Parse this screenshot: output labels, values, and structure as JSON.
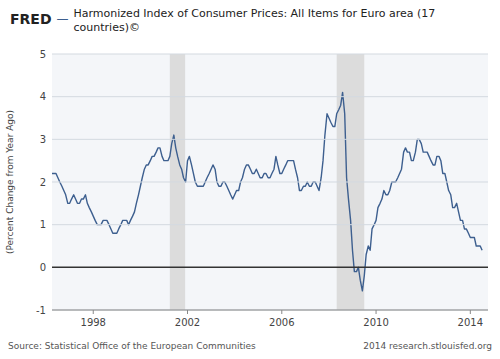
{
  "chart_data": {
    "type": "line",
    "brand": "FRED",
    "separator": "—",
    "title": "Harmonized Index of Consumer Prices: All Items for Euro area (17\ncountries)©",
    "ylabel": "(Percent Change from Year Ago)",
    "source": "Source: Statistical Office of the European Communities",
    "credit": "2014 research.stlouisfed.org",
    "color": "#3d5f8f",
    "grid": true,
    "xlim": [
      1996.25,
      2014.75
    ],
    "ylim": [
      -1,
      5
    ],
    "xticks": [
      1998,
      2002,
      2006,
      2010,
      2014
    ],
    "yticks": [
      -1,
      0,
      1,
      2,
      3,
      4,
      5
    ],
    "shaded_ranges": [
      [
        2001.25,
        2001.9
      ],
      [
        2008.33,
        2009.5
      ]
    ],
    "x": [
      1996.25,
      1996.33,
      1996.42,
      1996.5,
      1996.58,
      1996.67,
      1996.75,
      1996.83,
      1996.92,
      1997.0,
      1997.08,
      1997.17,
      1997.25,
      1997.33,
      1997.42,
      1997.5,
      1997.58,
      1997.67,
      1997.75,
      1997.83,
      1997.92,
      1998.0,
      1998.08,
      1998.17,
      1998.25,
      1998.33,
      1998.42,
      1998.5,
      1998.58,
      1998.67,
      1998.75,
      1998.83,
      1998.92,
      1999.0,
      1999.08,
      1999.17,
      1999.25,
      1999.33,
      1999.42,
      1999.5,
      1999.58,
      1999.67,
      1999.75,
      1999.83,
      1999.92,
      2000.0,
      2000.08,
      2000.17,
      2000.25,
      2000.33,
      2000.42,
      2000.5,
      2000.58,
      2000.67,
      2000.75,
      2000.83,
      2000.92,
      2001.0,
      2001.08,
      2001.17,
      2001.25,
      2001.33,
      2001.42,
      2001.5,
      2001.58,
      2001.67,
      2001.75,
      2001.83,
      2001.92,
      2002.0,
      2002.08,
      2002.17,
      2002.25,
      2002.33,
      2002.42,
      2002.5,
      2002.58,
      2002.67,
      2002.75,
      2002.83,
      2002.92,
      2003.0,
      2003.08,
      2003.17,
      2003.25,
      2003.33,
      2003.42,
      2003.5,
      2003.58,
      2003.67,
      2003.75,
      2003.83,
      2003.92,
      2004.0,
      2004.08,
      2004.17,
      2004.25,
      2004.33,
      2004.42,
      2004.5,
      2004.58,
      2004.67,
      2004.75,
      2004.83,
      2004.92,
      2005.0,
      2005.08,
      2005.17,
      2005.25,
      2005.33,
      2005.42,
      2005.5,
      2005.58,
      2005.67,
      2005.75,
      2005.83,
      2005.92,
      2006.0,
      2006.08,
      2006.17,
      2006.25,
      2006.33,
      2006.42,
      2006.5,
      2006.58,
      2006.67,
      2006.75,
      2006.83,
      2006.92,
      2007.0,
      2007.08,
      2007.17,
      2007.25,
      2007.33,
      2007.42,
      2007.5,
      2007.58,
      2007.67,
      2007.75,
      2007.83,
      2007.92,
      2008.0,
      2008.08,
      2008.17,
      2008.25,
      2008.33,
      2008.42,
      2008.5,
      2008.58,
      2008.67,
      2008.75,
      2008.83,
      2008.92,
      2009.0,
      2009.08,
      2009.17,
      2009.25,
      2009.33,
      2009.42,
      2009.5,
      2009.58,
      2009.67,
      2009.75,
      2009.83,
      2009.92,
      2010.0,
      2010.08,
      2010.17,
      2010.25,
      2010.33,
      2010.42,
      2010.5,
      2010.58,
      2010.67,
      2010.75,
      2010.83,
      2010.92,
      2011.0,
      2011.08,
      2011.17,
      2011.25,
      2011.33,
      2011.42,
      2011.5,
      2011.58,
      2011.67,
      2011.75,
      2011.83,
      2011.92,
      2012.0,
      2012.08,
      2012.17,
      2012.25,
      2012.33,
      2012.42,
      2012.5,
      2012.58,
      2012.67,
      2012.75,
      2012.83,
      2012.92,
      2013.0,
      2013.08,
      2013.17,
      2013.25,
      2013.33,
      2013.42,
      2013.5,
      2013.58,
      2013.67,
      2013.75,
      2013.83,
      2013.92,
      2014.0,
      2014.08,
      2014.17,
      2014.25,
      2014.33,
      2014.42,
      2014.5
    ],
    "values": [
      2.2,
      2.2,
      2.2,
      2.1,
      2.0,
      1.9,
      1.8,
      1.7,
      1.5,
      1.5,
      1.6,
      1.7,
      1.6,
      1.5,
      1.5,
      1.6,
      1.6,
      1.7,
      1.5,
      1.4,
      1.3,
      1.2,
      1.1,
      1.0,
      1.0,
      1.0,
      1.1,
      1.1,
      1.1,
      1.0,
      0.9,
      0.8,
      0.8,
      0.8,
      0.9,
      1.0,
      1.1,
      1.1,
      1.1,
      1.0,
      1.1,
      1.2,
      1.3,
      1.5,
      1.7,
      1.9,
      2.1,
      2.3,
      2.4,
      2.4,
      2.5,
      2.6,
      2.6,
      2.7,
      2.8,
      2.8,
      2.6,
      2.5,
      2.5,
      2.5,
      2.6,
      2.9,
      3.1,
      2.8,
      2.6,
      2.4,
      2.3,
      2.1,
      2.0,
      2.5,
      2.6,
      2.4,
      2.2,
      2.0,
      1.9,
      1.9,
      1.9,
      1.9,
      2.0,
      2.1,
      2.2,
      2.3,
      2.4,
      2.3,
      2.0,
      1.9,
      1.9,
      2.0,
      2.0,
      1.9,
      1.8,
      1.7,
      1.6,
      1.7,
      1.8,
      1.8,
      2.0,
      2.1,
      2.3,
      2.4,
      2.4,
      2.3,
      2.2,
      2.2,
      2.3,
      2.2,
      2.1,
      2.1,
      2.2,
      2.2,
      2.1,
      2.1,
      2.2,
      2.3,
      2.6,
      2.4,
      2.2,
      2.2,
      2.3,
      2.4,
      2.5,
      2.5,
      2.5,
      2.5,
      2.3,
      2.1,
      1.8,
      1.8,
      1.9,
      1.9,
      2.0,
      1.9,
      1.9,
      2.0,
      2.0,
      1.9,
      1.8,
      2.1,
      2.5,
      3.1,
      3.6,
      3.5,
      3.4,
      3.3,
      3.3,
      3.6,
      3.7,
      3.8,
      4.1,
      3.6,
      2.1,
      1.6,
      1.1,
      0.4,
      -0.1,
      -0.1,
      0.0,
      -0.3,
      -0.55,
      -0.2,
      0.3,
      0.5,
      0.4,
      0.9,
      1.0,
      1.1,
      1.4,
      1.5,
      1.6,
      1.8,
      1.7,
      1.7,
      1.8,
      2.0,
      2.0,
      2.0,
      2.1,
      2.2,
      2.3,
      2.7,
      2.8,
      2.7,
      2.7,
      2.5,
      2.5,
      2.7,
      3.0,
      3.0,
      2.9,
      2.7,
      2.7,
      2.7,
      2.6,
      2.5,
      2.4,
      2.4,
      2.6,
      2.6,
      2.5,
      2.2,
      2.2,
      2.0,
      1.8,
      1.7,
      1.4,
      1.4,
      1.5,
      1.3,
      1.1,
      1.1,
      0.9,
      0.9,
      0.8,
      0.7,
      0.7,
      0.7,
      0.5,
      0.5,
      0.5,
      0.4
    ]
  }
}
